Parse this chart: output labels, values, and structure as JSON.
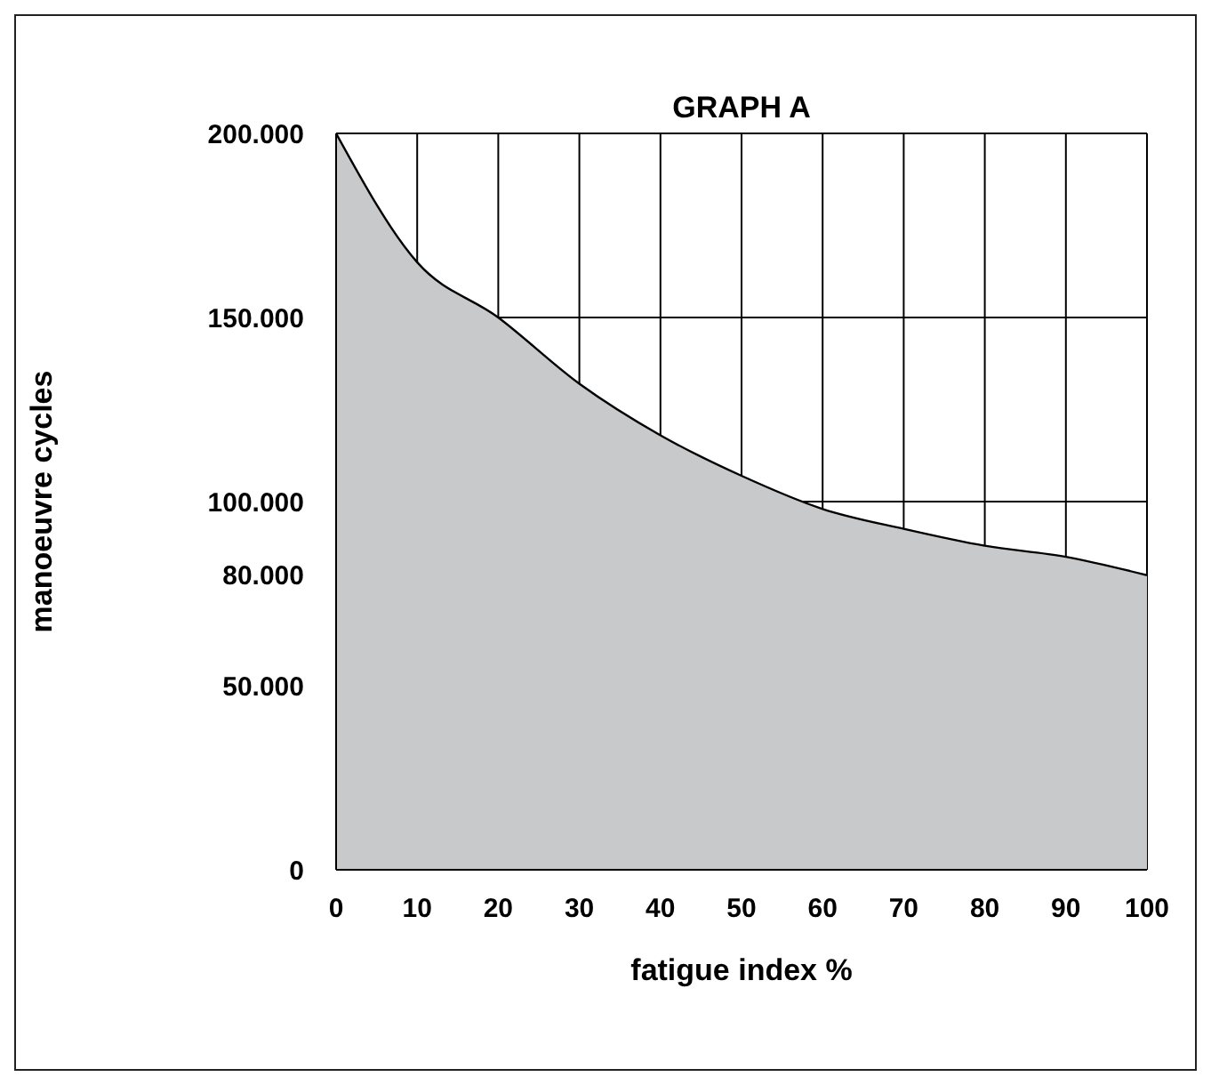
{
  "chart_data": {
    "type": "area",
    "title": "GRAPH A",
    "xlabel": "fatigue index %",
    "ylabel": "manoeuvre cycles",
    "x": [
      0,
      10,
      20,
      30,
      40,
      50,
      60,
      70,
      80,
      90,
      100
    ],
    "series": [
      {
        "color": "#c8c9ca",
        "values": [
          200000,
          165000,
          150000,
          132000,
          118000,
          107000,
          98000,
          92600,
          88000,
          85000,
          80000
        ]
      }
    ],
    "xlim": [
      0,
      100
    ],
    "xticks": [
      0,
      10,
      20,
      30,
      40,
      50,
      60,
      70,
      80,
      90,
      100
    ],
    "ylim": [
      0,
      200000
    ],
    "yticks": [
      0,
      {
        "value": 50000,
        "label": "50.000"
      },
      {
        "value": 80000,
        "label": "80.000"
      },
      {
        "value": 100000,
        "label": "100.000"
      },
      {
        "value": 150000,
        "label": "150.000"
      },
      {
        "value": 200000,
        "label": "200.000"
      }
    ],
    "grid": true
  }
}
